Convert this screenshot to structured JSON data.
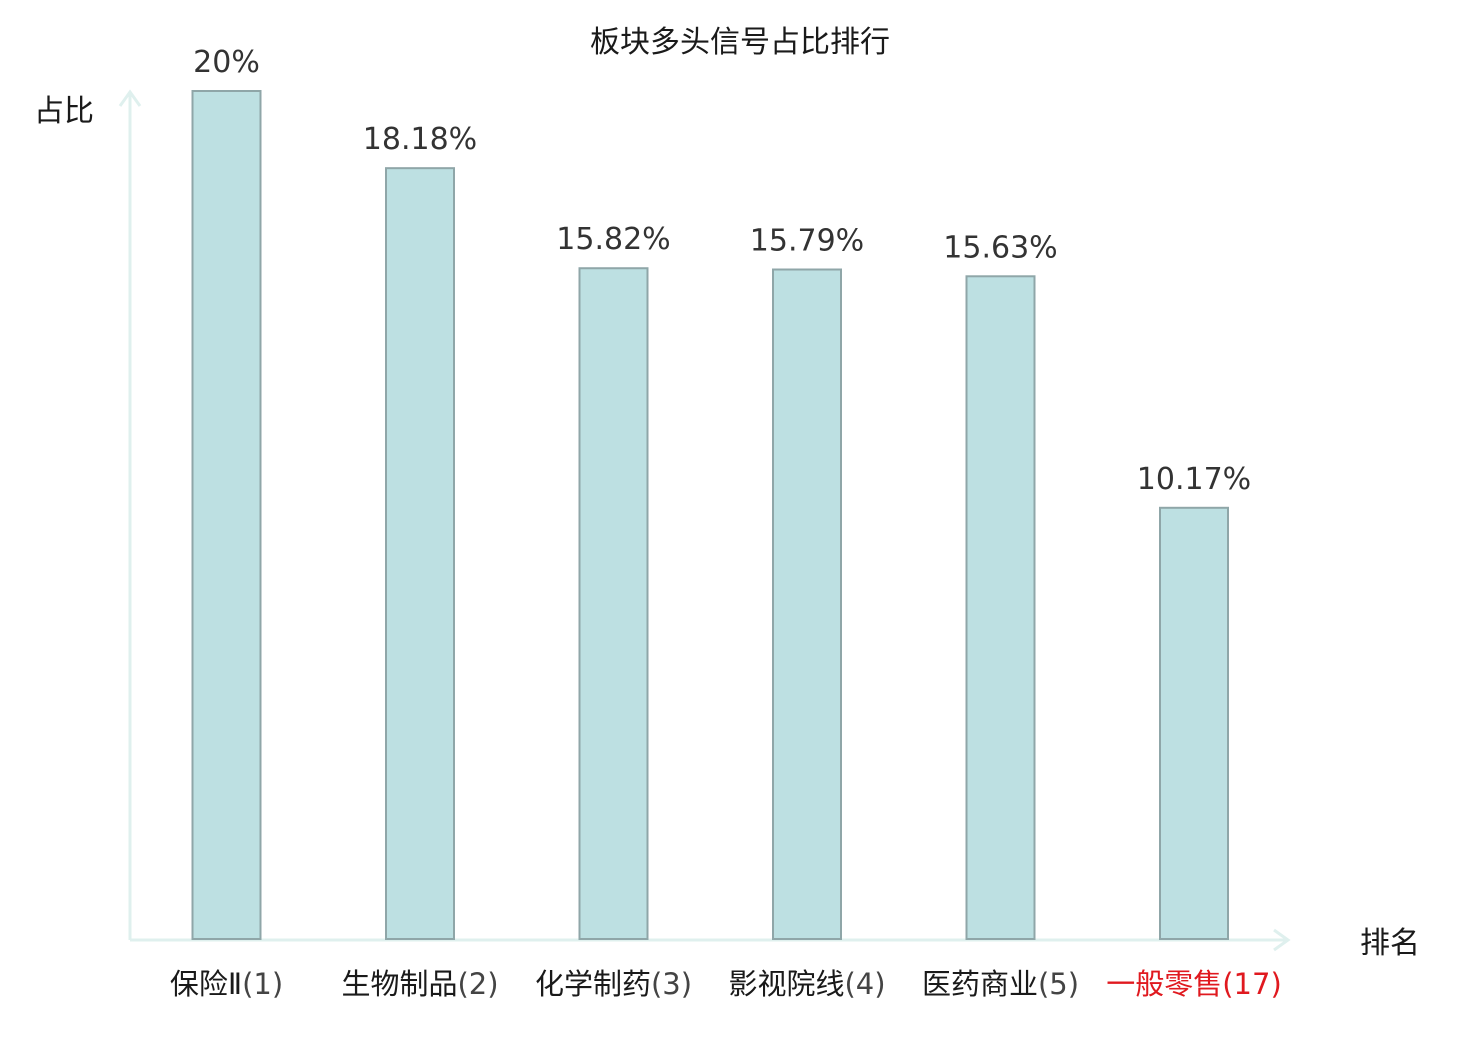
{
  "chart_data": {
    "type": "bar",
    "title": "板块多头信号占比排行",
    "xlabel": "排名",
    "ylabel": "占比",
    "categories": [
      {
        "name": "保险Ⅱ",
        "rank": "(1)",
        "highlight": false
      },
      {
        "name": "生物制品",
        "rank": "(2)",
        "highlight": false
      },
      {
        "name": "化学制药",
        "rank": "(3)",
        "highlight": false
      },
      {
        "name": "影视院线",
        "rank": "(4)",
        "highlight": false
      },
      {
        "name": "医药商业",
        "rank": "(5)",
        "highlight": false
      },
      {
        "name": "一般零售",
        "rank": "(17)",
        "highlight": true
      }
    ],
    "values": [
      20,
      18.18,
      15.82,
      15.79,
      15.63,
      10.17
    ],
    "value_labels": [
      "20%",
      "18.18%",
      "15.82%",
      "15.79%",
      "15.63%",
      "10.17%"
    ],
    "ylim": [
      0,
      20
    ],
    "grid": false,
    "colors": {
      "bar_fill": "#bde0e2",
      "bar_stroke": "#8fa6a8",
      "axis": "#dff0ee",
      "highlight": "#e0191f"
    }
  }
}
